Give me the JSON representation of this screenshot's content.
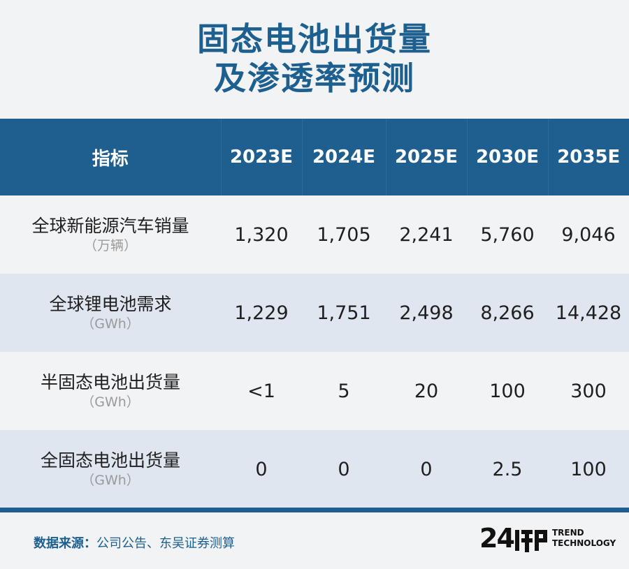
{
  "title": {
    "line1": "固态电池出货量",
    "line2": "及渗透率预测"
  },
  "table": {
    "headers": [
      "指标",
      "2023E",
      "2024E",
      "2025E",
      "2030E",
      "2035E"
    ],
    "rows": [
      {
        "label": "全球新能源汽车销量",
        "unit": "（万辆）",
        "values": [
          "1,320",
          "1,705",
          "2,241",
          "5,760",
          "9,046"
        ]
      },
      {
        "label": "全球锂电池需求",
        "unit": "（GWh）",
        "values": [
          "1,229",
          "1,751",
          "2,498",
          "8,266",
          "14,428"
        ]
      },
      {
        "label": "半固态电池出货量",
        "unit": "（GWh）",
        "values": [
          "<1",
          "5",
          "20",
          "100",
          "300"
        ]
      },
      {
        "label": "全固态电池出货量",
        "unit": "（GWh）",
        "values": [
          "0",
          "0",
          "0",
          "2.5",
          "100"
        ]
      }
    ]
  },
  "source": {
    "label": "数据来源：",
    "text": "公司公告、东吴证券测算"
  },
  "logo": {
    "mark": "24",
    "line1": "TREND",
    "line2": "TECHNOLOGY"
  },
  "colors": {
    "accent": "#1e5f90",
    "title": "#1d5f8e",
    "row_alt": "#dfe6ef"
  }
}
